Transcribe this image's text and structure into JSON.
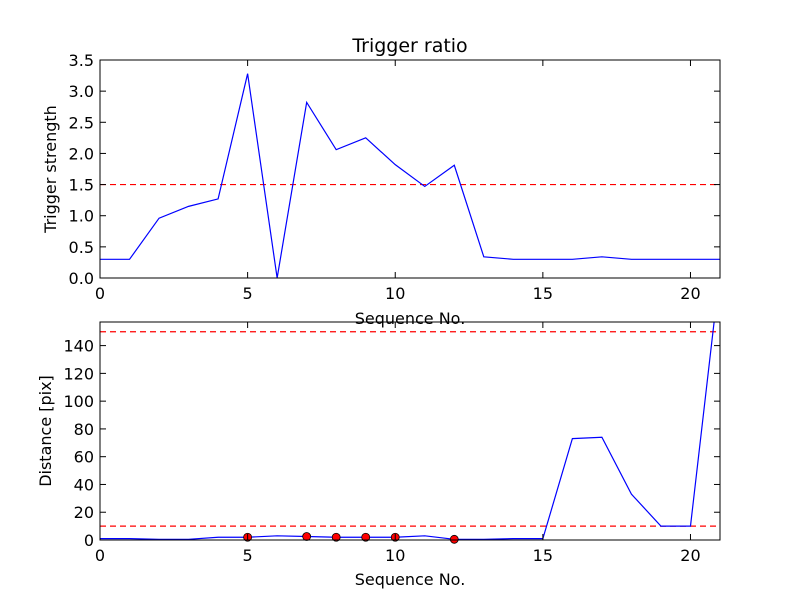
{
  "chart_data": [
    {
      "type": "line",
      "title": "Trigger ratio",
      "xlabel": "Sequence No.",
      "ylabel": "Trigger strength",
      "xlim": [
        0,
        21
      ],
      "ylim": [
        0,
        3.5
      ],
      "xticks": [
        0,
        5,
        10,
        15,
        20
      ],
      "yticks": [
        0.0,
        0.5,
        1.0,
        1.5,
        2.0,
        2.5,
        3.0,
        3.5
      ],
      "ytick_labels": [
        "0.0",
        "0.5",
        "1.0",
        "1.5",
        "2.0",
        "2.5",
        "3.0",
        "3.5"
      ],
      "series": [
        {
          "color": "#0000ff",
          "style": "solid",
          "x": [
            0,
            1,
            2,
            3,
            4,
            5,
            6,
            7,
            8,
            9,
            10,
            11,
            12,
            13,
            14,
            15,
            16,
            17,
            18,
            19,
            20,
            21
          ],
          "y": [
            0.3,
            0.3,
            0.96,
            1.15,
            1.27,
            3.28,
            0.0,
            2.82,
            2.06,
            2.25,
            1.82,
            1.47,
            1.81,
            0.34,
            0.3,
            0.3,
            0.3,
            0.34,
            0.3,
            0.3,
            0.3,
            0.3
          ]
        }
      ],
      "hlines": [
        {
          "y": 1.5,
          "color": "#ff0000",
          "style": "dashed"
        }
      ]
    },
    {
      "type": "line",
      "title": "",
      "xlabel": "Sequence No.",
      "ylabel": "Distance [pix]",
      "xlim": [
        0,
        21
      ],
      "ylim": [
        0,
        157
      ],
      "xticks": [
        0,
        5,
        10,
        15,
        20
      ],
      "yticks": [
        0,
        20,
        40,
        60,
        80,
        100,
        120,
        140
      ],
      "ytick_labels": [
        "0",
        "20",
        "40",
        "60",
        "80",
        "100",
        "120",
        "140"
      ],
      "series": [
        {
          "color": "#0000ff",
          "style": "solid",
          "x": [
            0,
            1,
            2,
            3,
            4,
            5,
            6,
            7,
            8,
            9,
            10,
            11,
            12,
            13,
            14,
            15,
            16,
            17,
            18,
            19,
            20,
            20.8
          ],
          "y": [
            1,
            1,
            0.5,
            0.5,
            2,
            2,
            3,
            2.5,
            2,
            2,
            2,
            3,
            0.5,
            0.5,
            1,
            1,
            73,
            74,
            33,
            10,
            10,
            157
          ]
        },
        {
          "color": "#ff0000",
          "style": "markers",
          "x": [
            5,
            7,
            8,
            9,
            10,
            12
          ],
          "y": [
            2,
            2.5,
            2,
            2,
            2,
            0.5
          ]
        }
      ],
      "hlines": [
        {
          "y": 150,
          "color": "#ff0000",
          "style": "dashed"
        },
        {
          "y": 10,
          "color": "#ff0000",
          "style": "dashed"
        }
      ]
    }
  ]
}
